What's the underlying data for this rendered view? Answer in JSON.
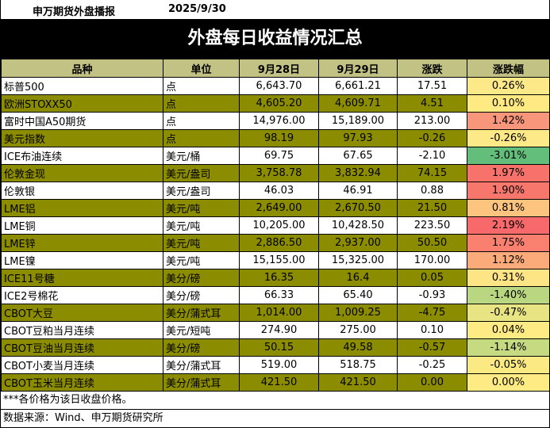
{
  "header": {
    "brand": "申万期货外盘播报",
    "date": "2025/9/30"
  },
  "title": "外盘每日收益情况汇总",
  "columns": [
    "品种",
    "单位",
    "9月28日",
    "9月29日",
    "涨跌",
    "涨跌幅"
  ],
  "colors": {
    "header_bg": "#c3c285",
    "olive_row": "#8c8c00",
    "white_row": "#ffffff",
    "title_bg": "#000000"
  },
  "rows": [
    {
      "name": "标普500",
      "unit": "点",
      "d1": "6,643.70",
      "d2": "6,661.21",
      "chg": "17.51",
      "pct": "0.26%",
      "pct_color": "#fde987",
      "olive": false
    },
    {
      "name": "欧洲STOXX50",
      "unit": "点",
      "d1": "4,605.20",
      "d2": "4,609.71",
      "chg": "4.51",
      "pct": "0.10%",
      "pct_color": "#fee983",
      "olive": true
    },
    {
      "name": "富时中国A50期货",
      "unit": "点",
      "d1": "14,976.00",
      "d2": "15,189.00",
      "chg": "213.00",
      "pct": "1.42%",
      "pct_color": "#f7967a",
      "olive": false
    },
    {
      "name": "美元指数",
      "unit": "点",
      "d1": "98.19",
      "d2": "97.93",
      "chg": "-0.26",
      "pct": "-0.26%",
      "pct_color": "#fde987",
      "olive": true
    },
    {
      "name": "ICE布油连续",
      "unit": "美元/桶",
      "d1": "69.75",
      "d2": "67.65",
      "chg": "-2.10",
      "pct": "-3.01%",
      "pct_color": "#63be7b",
      "olive": false
    },
    {
      "name": "伦敦金现",
      "unit": "美元/盎司",
      "d1": "3,758.78",
      "d2": "3,832.94",
      "chg": "74.15",
      "pct": "1.97%",
      "pct_color": "#f8726c",
      "olive": true
    },
    {
      "name": "伦敦银",
      "unit": "美元/盎司",
      "d1": "46.03",
      "d2": "46.91",
      "chg": "0.88",
      "pct": "1.90%",
      "pct_color": "#f8776d",
      "olive": false
    },
    {
      "name": "LME铝",
      "unit": "美元/吨",
      "d1": "2,649.00",
      "d2": "2,670.50",
      "chg": "21.50",
      "pct": "0.81%",
      "pct_color": "#fcc47f",
      "olive": true
    },
    {
      "name": "LME铜",
      "unit": "美元/吨",
      "d1": "10,205.00",
      "d2": "10,428.50",
      "chg": "223.50",
      "pct": "2.19%",
      "pct_color": "#f8696b",
      "olive": false
    },
    {
      "name": "LME锌",
      "unit": "美元/吨",
      "d1": "2,886.50",
      "d2": "2,937.00",
      "chg": "50.50",
      "pct": "1.75%",
      "pct_color": "#f9806f",
      "olive": true
    },
    {
      "name": "LME镍",
      "unit": "美元/吨",
      "d1": "15,155.00",
      "d2": "15,325.00",
      "chg": "170.00",
      "pct": "1.12%",
      "pct_color": "#faab79",
      "olive": false
    },
    {
      "name": "ICE11号糖",
      "unit": "美分/磅",
      "d1": "16.35",
      "d2": "16.4",
      "chg": "0.05",
      "pct": "0.31%",
      "pct_color": "#fde585",
      "olive": true
    },
    {
      "name": "ICE2号棉花",
      "unit": "美分/磅",
      "d1": "66.33",
      "d2": "65.40",
      "chg": "-0.93",
      "pct": "-1.40%",
      "pct_color": "#b9d780",
      "olive": false
    },
    {
      "name": "CBOT大豆",
      "unit": "美分/蒲式耳",
      "d1": "1,014.00",
      "d2": "1,009.25",
      "chg": "-4.75",
      "pct": "-0.47%",
      "pct_color": "#e8e383",
      "olive": true
    },
    {
      "name": "CBOT豆粕当月连续",
      "unit": "美元/短吨",
      "d1": "274.90",
      "d2": "275.00",
      "chg": "0.10",
      "pct": "0.04%",
      "pct_color": "#ffeb84",
      "olive": false
    },
    {
      "name": "CBOT豆油当月连续",
      "unit": "美分/磅",
      "d1": "50.15",
      "d2": "49.58",
      "chg": "-0.57",
      "pct": "-1.14%",
      "pct_color": "#c5da81",
      "olive": true
    },
    {
      "name": "CBOT小麦当月连续",
      "unit": "美分/蒲式耳",
      "d1": "519.00",
      "d2": "518.75",
      "chg": "-0.25",
      "pct": "-0.05%",
      "pct_color": "#fbea84",
      "olive": false
    },
    {
      "name": "CBOT玉米当月连续",
      "unit": "美分/蒲式耳",
      "d1": "421.50",
      "d2": "421.50",
      "chg": "0.00",
      "pct": "0.00%",
      "pct_color": "#ffeb84",
      "olive": true
    }
  ],
  "footnote": "***各价格为该日收盘价格。",
  "source": "数据来源：Wind、申万期货研究所"
}
